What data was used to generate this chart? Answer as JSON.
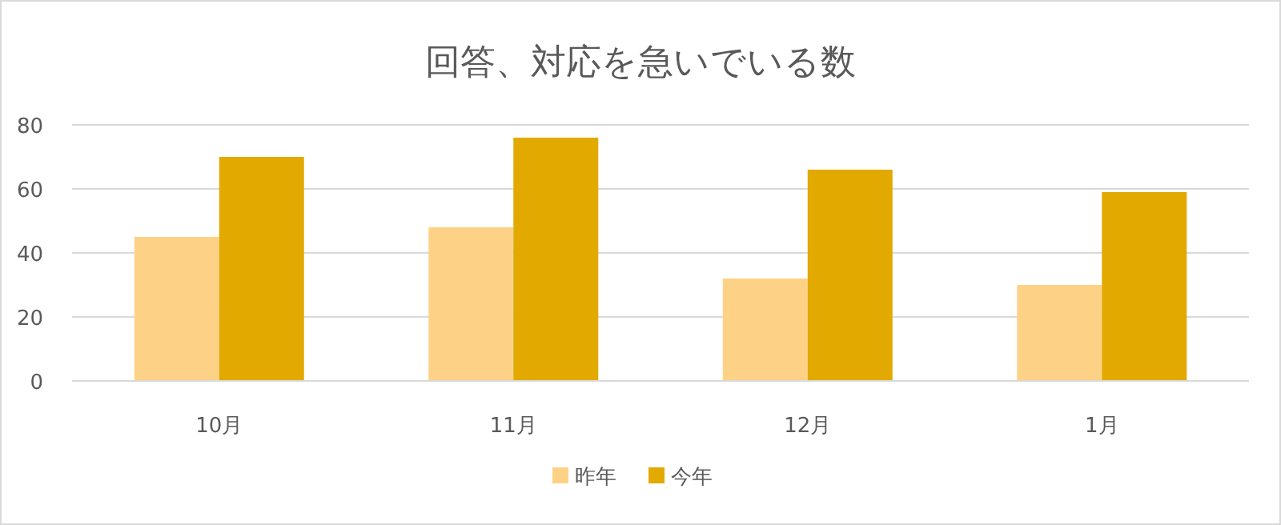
{
  "chart_data": {
    "type": "bar",
    "title": "回答、対応を急いでいる数",
    "categories": [
      "10月",
      "11月",
      "12月",
      "1月"
    ],
    "series": [
      {
        "name": "昨年",
        "color": "#fed286",
        "values": [
          45,
          48,
          32,
          30
        ]
      },
      {
        "name": "今年",
        "color": "#e2a900",
        "values": [
          70,
          76,
          66,
          59
        ]
      }
    ],
    "ylim": [
      0,
      80
    ],
    "yticks": [
      0,
      20,
      40,
      60,
      80
    ],
    "grid": "y",
    "legend": "bottom"
  }
}
